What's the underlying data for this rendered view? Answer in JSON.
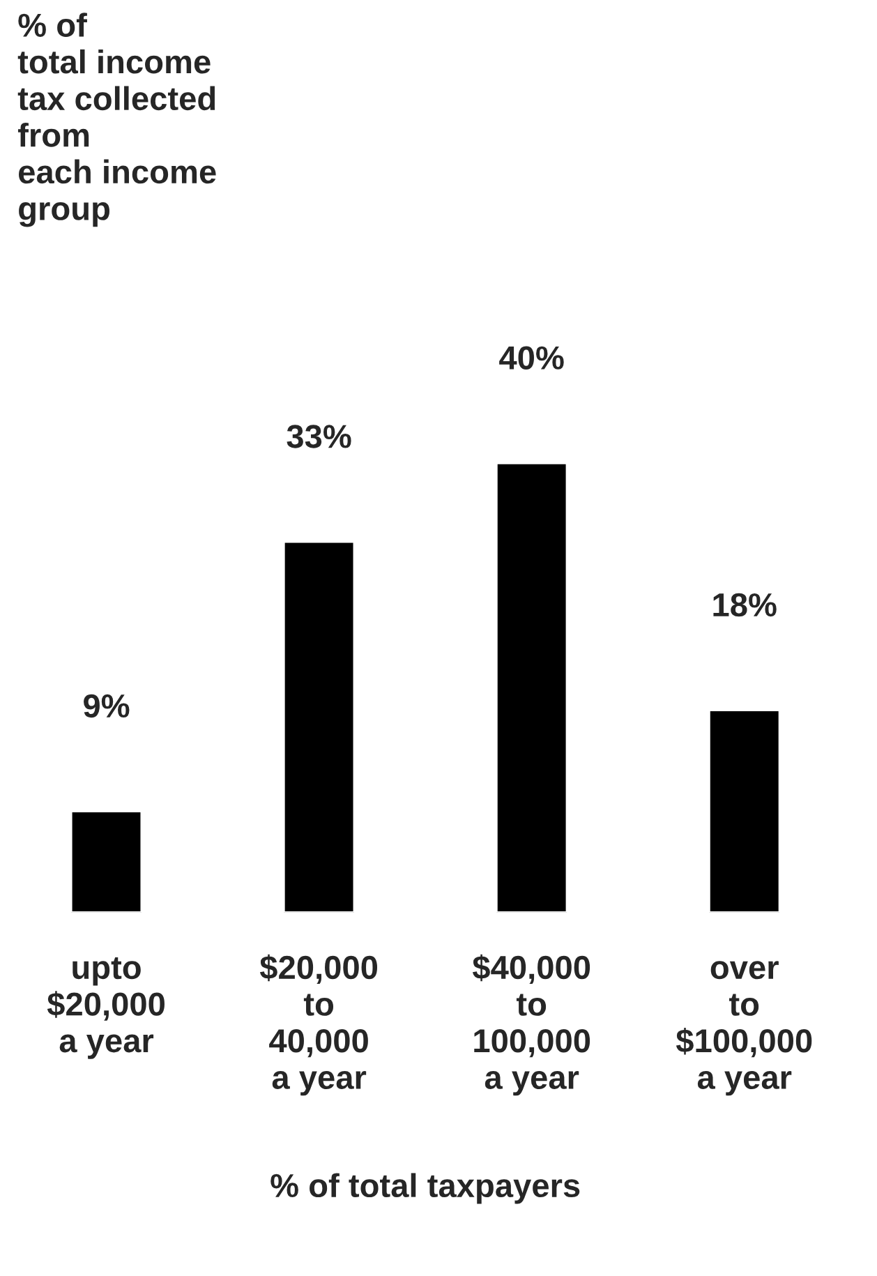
{
  "chart_data": {
    "type": "bar",
    "title": "% of\ntotal income\ntax collected\nfrom\neach income\ngroup",
    "xlabel": "% of total taxpayers",
    "categories": [
      "upto\n$20,000\na year",
      "$20,000\nto\n40,000\na year",
      "$40,000\nto\n100,000\na year",
      "over\nto\n$100,000\na year"
    ],
    "values": [
      9,
      33,
      40,
      18
    ],
    "value_labels": [
      "9%",
      "33%",
      "40%",
      "18%"
    ],
    "color": "#000000",
    "grid": false,
    "legend": false
  }
}
